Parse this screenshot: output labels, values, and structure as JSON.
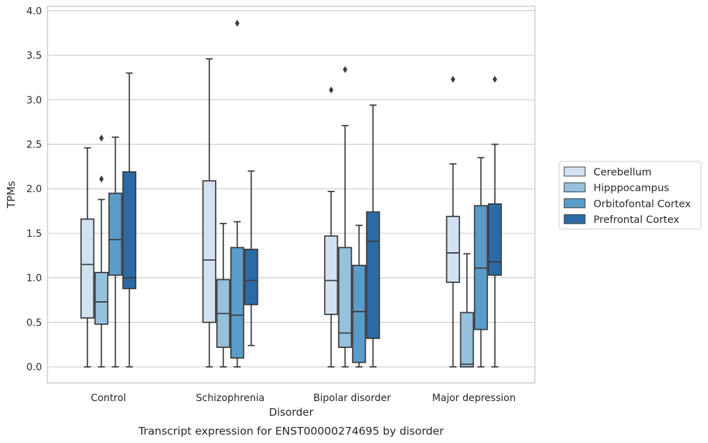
{
  "caption": "Transcript expression for ENST00000274695 by disorder",
  "chart_data": {
    "type": "box",
    "title": "",
    "xlabel": "Disorder",
    "ylabel": "TPMs",
    "ylim": [
      -0.18,
      4.05
    ],
    "yticks": [
      "0.0",
      "0.5",
      "1.0",
      "1.5",
      "2.0",
      "2.5",
      "3.0",
      "3.5",
      "4.0"
    ],
    "grid": "horizontal",
    "legend_position": "right",
    "categories": [
      "Control",
      "Schizophrenia",
      "Bipolar disorder",
      "Major depression"
    ],
    "series": [
      {
        "name": "Cerebellum",
        "color": "#d3e2f1",
        "boxes": [
          {
            "whislo": 0.0,
            "q1": 0.55,
            "med": 1.15,
            "q3": 1.66,
            "whishi": 2.46,
            "fliers": []
          },
          {
            "whislo": 0.0,
            "q1": 0.5,
            "med": 1.2,
            "q3": 2.09,
            "whishi": 3.46,
            "fliers": []
          },
          {
            "whislo": 0.0,
            "q1": 0.59,
            "med": 0.97,
            "q3": 1.47,
            "whishi": 1.97,
            "fliers": [
              3.11
            ]
          },
          {
            "whislo": 0.0,
            "q1": 0.95,
            "med": 1.28,
            "q3": 1.69,
            "whishi": 2.28,
            "fliers": [
              3.23
            ]
          }
        ]
      },
      {
        "name": "Hipppocampus",
        "color": "#95c1dc",
        "boxes": [
          {
            "whislo": 0.0,
            "q1": 0.48,
            "med": 0.73,
            "q3": 1.06,
            "whishi": 1.88,
            "fliers": [
              2.11,
              2.57
            ]
          },
          {
            "whislo": 0.0,
            "q1": 0.22,
            "med": 0.6,
            "q3": 0.98,
            "whishi": 1.61,
            "fliers": []
          },
          {
            "whislo": 0.0,
            "q1": 0.22,
            "med": 0.38,
            "q3": 1.34,
            "whishi": 2.71,
            "fliers": [
              3.34
            ]
          },
          {
            "whislo": 0.0,
            "q1": 0.0,
            "med": 0.03,
            "q3": 0.61,
            "whishi": 1.27,
            "fliers": []
          }
        ]
      },
      {
        "name": "Orbitofontal Cortex",
        "color": "#5a9cca",
        "boxes": [
          {
            "whislo": 0.0,
            "q1": 1.03,
            "med": 1.43,
            "q3": 1.95,
            "whishi": 2.58,
            "fliers": []
          },
          {
            "whislo": 0.0,
            "q1": 0.1,
            "med": 0.58,
            "q3": 1.34,
            "whishi": 1.63,
            "fliers": [
              3.86
            ]
          },
          {
            "whislo": 0.0,
            "q1": 0.05,
            "med": 0.62,
            "q3": 1.14,
            "whishi": 1.59,
            "fliers": []
          },
          {
            "whislo": 0.0,
            "q1": 0.42,
            "med": 1.11,
            "q3": 1.81,
            "whishi": 2.35,
            "fliers": []
          }
        ]
      },
      {
        "name": "Prefrontal Cortex",
        "color": "#2b6aa5",
        "boxes": [
          {
            "whislo": 0.0,
            "q1": 0.88,
            "med": 1.0,
            "q3": 2.19,
            "whishi": 3.3,
            "fliers": []
          },
          {
            "whislo": 0.24,
            "q1": 0.7,
            "med": 0.97,
            "q3": 1.32,
            "whishi": 2.2,
            "fliers": []
          },
          {
            "whislo": 0.0,
            "q1": 0.32,
            "med": 1.41,
            "q3": 1.74,
            "whishi": 2.94,
            "fliers": []
          },
          {
            "whislo": 0.0,
            "q1": 1.03,
            "med": 1.18,
            "q3": 1.83,
            "whishi": 2.5,
            "fliers": [
              3.23
            ]
          }
        ]
      }
    ]
  }
}
